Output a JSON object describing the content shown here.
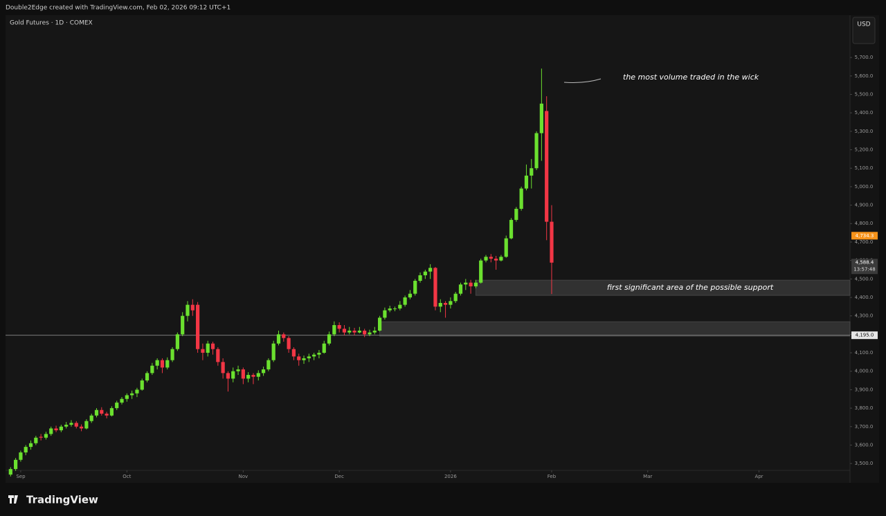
{
  "header": "Double2Edge created with TradingView.com, Feb 02, 2026 09:12 UTC+1",
  "footer": "TradingView",
  "chart_data": {
    "type": "candlestick",
    "title": "Gold Futures · 1D · COMEX",
    "currency": "USD",
    "up_color": "#6be02f",
    "down_color": "#f23645",
    "x": [
      -2,
      -1,
      0,
      1,
      2,
      3,
      4,
      5,
      6,
      7,
      8,
      9,
      10,
      11,
      12,
      13,
      14,
      15,
      16,
      17,
      18,
      19,
      20,
      21,
      22,
      23,
      24,
      25,
      26,
      27,
      28,
      29,
      30,
      31,
      32,
      33,
      34,
      35,
      36,
      37,
      38,
      39,
      40,
      41,
      42,
      43,
      44,
      45,
      46,
      47,
      48,
      49,
      50,
      51,
      52,
      53,
      54,
      55,
      56,
      57,
      58,
      59,
      60,
      61,
      62,
      63,
      64,
      65,
      66,
      67,
      68,
      69,
      70,
      71,
      72,
      73,
      74,
      75,
      76,
      77,
      78,
      79,
      80,
      81,
      82,
      83,
      84,
      85,
      86,
      87,
      88,
      89,
      90,
      91,
      92,
      93,
      94,
      95,
      96,
      97,
      98,
      99,
      100,
      101,
      102,
      103,
      104,
      105
    ],
    "ohlc": [
      [
        3440,
        3480,
        3430,
        3470
      ],
      [
        3470,
        3530,
        3460,
        3520
      ],
      [
        3520,
        3570,
        3510,
        3560
      ],
      [
        3560,
        3600,
        3545,
        3590
      ],
      [
        3590,
        3625,
        3575,
        3610
      ],
      [
        3610,
        3650,
        3600,
        3640
      ],
      [
        3645,
        3660,
        3625,
        3640
      ],
      [
        3640,
        3672,
        3630,
        3660
      ],
      [
        3660,
        3700,
        3650,
        3690
      ],
      [
        3690,
        3705,
        3670,
        3680
      ],
      [
        3680,
        3710,
        3670,
        3700
      ],
      [
        3700,
        3725,
        3690,
        3710
      ],
      [
        3710,
        3735,
        3700,
        3720
      ],
      [
        3720,
        3730,
        3690,
        3700
      ],
      [
        3700,
        3712,
        3675,
        3690
      ],
      [
        3690,
        3740,
        3685,
        3730
      ],
      [
        3730,
        3770,
        3720,
        3760
      ],
      [
        3760,
        3800,
        3750,
        3790
      ],
      [
        3790,
        3805,
        3760,
        3770
      ],
      [
        3770,
        3780,
        3745,
        3760
      ],
      [
        3760,
        3810,
        3755,
        3800
      ],
      [
        3800,
        3840,
        3790,
        3830
      ],
      [
        3830,
        3860,
        3820,
        3850
      ],
      [
        3850,
        3880,
        3835,
        3870
      ],
      [
        3870,
        3895,
        3850,
        3880
      ],
      [
        3880,
        3910,
        3860,
        3900
      ],
      [
        3900,
        3960,
        3895,
        3950
      ],
      [
        3950,
        4000,
        3940,
        3990
      ],
      [
        3990,
        4045,
        3980,
        4030
      ],
      [
        4030,
        4070,
        4010,
        4060
      ],
      [
        4060,
        4070,
        3990,
        4020
      ],
      [
        4020,
        4075,
        4010,
        4060
      ],
      [
        4060,
        4130,
        4050,
        4120
      ],
      [
        4120,
        4210,
        4110,
        4200
      ],
      [
        4200,
        4320,
        4190,
        4300
      ],
      [
        4300,
        4380,
        4270,
        4360
      ],
      [
        4360,
        4390,
        4300,
        4330
      ],
      [
        4360,
        4375,
        4100,
        4120
      ],
      [
        4120,
        4150,
        4060,
        4100
      ],
      [
        4100,
        4165,
        4080,
        4150
      ],
      [
        4150,
        4160,
        4090,
        4120
      ],
      [
        4120,
        4130,
        4030,
        4050
      ],
      [
        4050,
        4070,
        3960,
        3990
      ],
      [
        3990,
        4000,
        3890,
        3960
      ],
      [
        3960,
        4020,
        3940,
        4000
      ],
      [
        4000,
        4030,
        3980,
        4010
      ],
      [
        4010,
        4020,
        3930,
        3960
      ],
      [
        3960,
        3995,
        3940,
        3980
      ],
      [
        3980,
        3990,
        3930,
        3970
      ],
      [
        3970,
        4005,
        3950,
        3990
      ],
      [
        3990,
        4025,
        3975,
        4010
      ],
      [
        4010,
        4070,
        4000,
        4060
      ],
      [
        4060,
        4165,
        4050,
        4150
      ],
      [
        4150,
        4220,
        4140,
        4200
      ],
      [
        4200,
        4210,
        4160,
        4180
      ],
      [
        4180,
        4190,
        4100,
        4120
      ],
      [
        4120,
        4130,
        4060,
        4080
      ],
      [
        4080,
        4095,
        4030,
        4060
      ],
      [
        4060,
        4085,
        4040,
        4070
      ],
      [
        4070,
        4095,
        4050,
        4080
      ],
      [
        4080,
        4100,
        4060,
        4090
      ],
      [
        4090,
        4115,
        4070,
        4100
      ],
      [
        4100,
        4165,
        4095,
        4150
      ],
      [
        4150,
        4215,
        4140,
        4200
      ],
      [
        4200,
        4270,
        4190,
        4250
      ],
      [
        4250,
        4265,
        4210,
        4230
      ],
      [
        4230,
        4250,
        4195,
        4210
      ],
      [
        4210,
        4240,
        4200,
        4220
      ],
      [
        4220,
        4235,
        4195,
        4210
      ],
      [
        4210,
        4240,
        4205,
        4220
      ],
      [
        4220,
        4230,
        4185,
        4200
      ],
      [
        4200,
        4225,
        4190,
        4210
      ],
      [
        4210,
        4240,
        4200,
        4220
      ],
      [
        4220,
        4300,
        4215,
        4290
      ],
      [
        4290,
        4345,
        4280,
        4330
      ],
      [
        4330,
        4355,
        4320,
        4340
      ],
      [
        4340,
        4350,
        4325,
        4340
      ],
      [
        4340,
        4380,
        4330,
        4360
      ],
      [
        4360,
        4410,
        4350,
        4400
      ],
      [
        4400,
        4440,
        4390,
        4420
      ],
      [
        4420,
        4500,
        4410,
        4490
      ],
      [
        4490,
        4535,
        4480,
        4520
      ],
      [
        4520,
        4550,
        4500,
        4540
      ],
      [
        4540,
        4580,
        4500,
        4560
      ],
      [
        4560,
        4565,
        4330,
        4350
      ],
      [
        4350,
        4390,
        4320,
        4370
      ],
      [
        4370,
        4380,
        4290,
        4360
      ],
      [
        4360,
        4400,
        4340,
        4380
      ],
      [
        4380,
        4430,
        4370,
        4420
      ],
      [
        4420,
        4480,
        4410,
        4470
      ],
      [
        4470,
        4500,
        4440,
        4480
      ],
      [
        4480,
        4495,
        4420,
        4460
      ],
      [
        4460,
        4495,
        4450,
        4480
      ],
      [
        4480,
        4610,
        4475,
        4600
      ],
      [
        4600,
        4630,
        4590,
        4620
      ],
      [
        4620,
        4635,
        4590,
        4610
      ],
      [
        4610,
        4625,
        4550,
        4600
      ],
      [
        4600,
        4630,
        4595,
        4620
      ],
      [
        4620,
        4735,
        4615,
        4720
      ],
      [
        4720,
        4830,
        4715,
        4820
      ],
      [
        4820,
        4890,
        4810,
        4880
      ],
      [
        4880,
        5000,
        4870,
        4990
      ],
      [
        4990,
        5120,
        4980,
        5060
      ],
      [
        5060,
        5150,
        4990,
        5100
      ],
      [
        5100,
        5300,
        5090,
        5290
      ],
      [
        5290,
        5640,
        5140,
        5450
      ],
      [
        5410,
        5490,
        4710,
        4810
      ],
      [
        4810,
        4900,
        4418,
        4588.4
      ]
    ],
    "xlim": [
      -3,
      164
    ],
    "xticks": [
      {
        "value": 0,
        "label": "Sep"
      },
      {
        "value": 21,
        "label": "Oct"
      },
      {
        "value": 44,
        "label": "Nov"
      },
      {
        "value": 63,
        "label": "Dec"
      },
      {
        "value": 85,
        "label": "2026"
      },
      {
        "value": 105,
        "label": "Feb"
      },
      {
        "value": 124,
        "label": "Mar"
      },
      {
        "value": 146,
        "label": "Apr"
      }
    ],
    "ylim": [
      3463,
      5929
    ],
    "yticks": [
      {
        "value": 3500,
        "label": "3,500.0"
      },
      {
        "value": 3600,
        "label": "3,600.0"
      },
      {
        "value": 3700,
        "label": "3,700.0"
      },
      {
        "value": 3800,
        "label": "3,800.0"
      },
      {
        "value": 3900,
        "label": "3,900.0"
      },
      {
        "value": 4000,
        "label": "4,000.0"
      },
      {
        "value": 4100,
        "label": "4,100.0"
      },
      {
        "value": 4200,
        "label": "4,200.0"
      },
      {
        "value": 4300,
        "label": "4,300.0"
      },
      {
        "value": 4400,
        "label": "4,400.0"
      },
      {
        "value": 4500,
        "label": "4,500.0"
      },
      {
        "value": 4600,
        "label": "4,600.0"
      },
      {
        "value": 4700,
        "label": "4,700.0"
      },
      {
        "value": 4800,
        "label": "4,800.0"
      },
      {
        "value": 4900,
        "label": "4,900.0"
      },
      {
        "value": 5000,
        "label": "5,000.0"
      },
      {
        "value": 5100,
        "label": "5,100.0"
      },
      {
        "value": 5200,
        "label": "5,200.0"
      },
      {
        "value": 5300,
        "label": "5,300.0"
      },
      {
        "value": 5400,
        "label": "5,400.0"
      },
      {
        "value": 5500,
        "label": "5,500.0"
      },
      {
        "value": 5600,
        "label": "5,600.0"
      },
      {
        "value": 5700,
        "label": "5,700.0"
      }
    ],
    "price_labels": [
      {
        "value": 4734.3,
        "label": "4,734.3",
        "color": "#f7931a"
      },
      {
        "value": 4588.4,
        "label": "4,588.4",
        "countdown": "13:57:48",
        "color": "#3a3a3a"
      },
      {
        "value": 4195,
        "label": "4,195.0",
        "color": "#e6e6e6"
      }
    ],
    "zones": [
      {
        "from": 4411,
        "to": 4493,
        "start": 90,
        "label": "first significant area of the possible support"
      },
      {
        "from": 4190,
        "to": 4268,
        "start": 71
      }
    ],
    "annotation": "the most volume traded in the wick"
  }
}
